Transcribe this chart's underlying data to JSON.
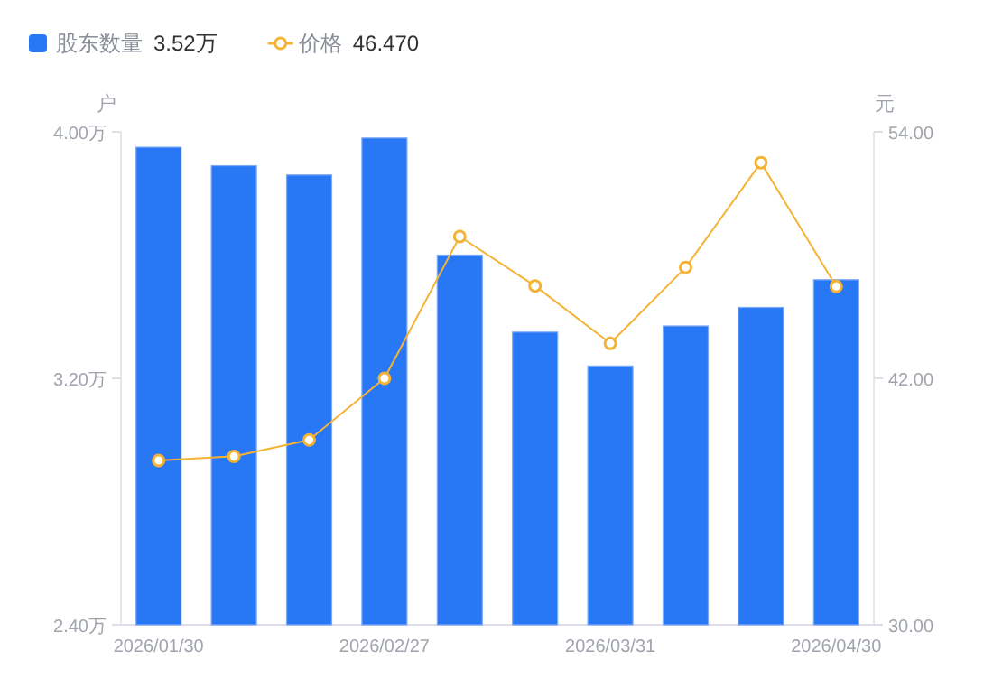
{
  "chart_data": {
    "type": "bar",
    "categories": [
      "2026/01/30",
      null,
      null,
      "2026/02/27",
      null,
      null,
      "2026/03/31",
      null,
      null,
      "2026/04/30"
    ],
    "series": [
      {
        "name": "股东数量",
        "color": "#2878f5",
        "values": [
          3.95,
          3.89,
          3.86,
          3.98,
          3.6,
          3.35,
          3.24,
          3.37,
          3.43,
          3.52
        ]
      },
      {
        "name": "价格",
        "type": "line",
        "axis": "y2",
        "color": "#f5b335",
        "marker": "circle",
        "values": [
          38.0,
          38.2,
          39.0,
          42.0,
          48.9,
          46.5,
          43.7,
          47.4,
          52.5,
          46.47
        ]
      }
    ],
    "ylabel": "户",
    "y2label": "元",
    "ylim": [
      2.4,
      4.0
    ],
    "yticks": [
      {
        "value": 2.4,
        "label": "2.40万"
      },
      {
        "value": 3.2,
        "label": "3.20万"
      },
      {
        "value": 4.0,
        "label": "4.00万"
      }
    ],
    "y2lim": [
      30,
      54
    ],
    "y2ticks": [
      {
        "value": 30,
        "label": "30.00"
      },
      {
        "value": 42,
        "label": "42.00"
      },
      {
        "value": 54,
        "label": "54.00"
      }
    ],
    "annotations": [
      "3.52万",
      "46.470"
    ],
    "legend": "top left",
    "grid": false
  }
}
